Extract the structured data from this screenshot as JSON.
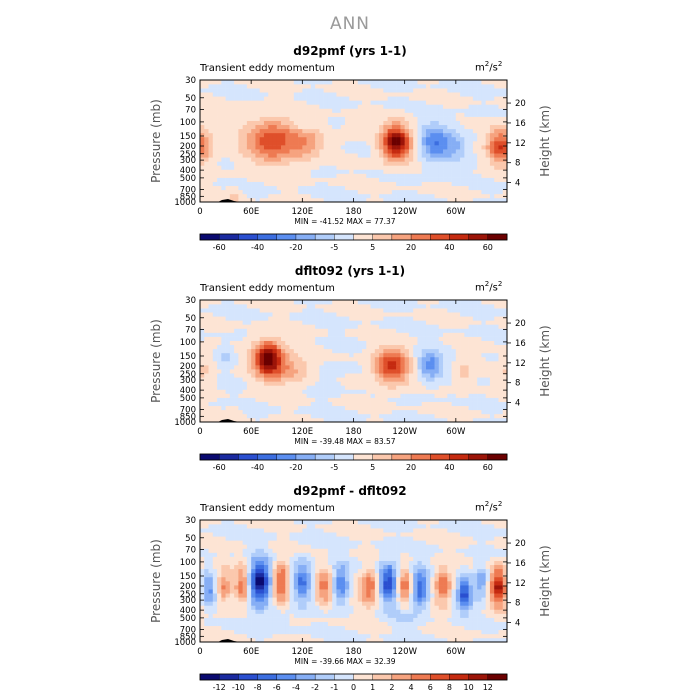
{
  "figure": {
    "title": "ANN"
  },
  "chart_data": [
    {
      "type": "heatmap",
      "title": "d92pmf (yrs 1-1)",
      "subtitle": "Transient eddy momentum",
      "units_base": "m",
      "units_sup1": "2",
      "units_mid": "/s",
      "units_sup2": "2",
      "ylabel": "Pressure (mb)",
      "y2label": "Height (km)",
      "x_ticks": [
        "0",
        "60E",
        "120E",
        "180",
        "120W",
        "60W"
      ],
      "x_tick_lon": [
        0,
        60,
        120,
        180,
        240,
        300
      ],
      "pressure_ticks": [
        "30",
        "50",
        "70",
        "100",
        "150",
        "200",
        "250",
        "300",
        "400",
        "500",
        "700",
        "850",
        "1000"
      ],
      "height_ticks": [
        "20",
        "16",
        "12",
        "8",
        "4"
      ],
      "stats": "MIN = -41.52   MAX =  77.37",
      "colorbar_labels": [
        "-60",
        "-40",
        "-20",
        "-5",
        "5",
        "20",
        "40",
        "60"
      ],
      "colorbar_colors": [
        "#0a0a70",
        "#1a2aa0",
        "#2a4fd0",
        "#3c6ee0",
        "#5b8ef0",
        "#86aef5",
        "#b0cdfa",
        "#d5e5fd",
        "#fde4d4",
        "#fbc8ad",
        "#f6a37f",
        "#ee7a52",
        "#df4f2a",
        "#c52a10",
        "#9c1408",
        "#6b0000"
      ],
      "features": [
        {
          "lon": 2,
          "p": 200,
          "amp": 30,
          "wlon": 10,
          "wp": 0.35
        },
        {
          "lon": 85,
          "p": 170,
          "amp": 50,
          "wlon": 22,
          "wp": 0.42
        },
        {
          "lon": 125,
          "p": 180,
          "amp": 22,
          "wlon": 14,
          "wp": 0.35
        },
        {
          "lon": 230,
          "p": 180,
          "amp": 77,
          "wlon": 12,
          "wp": 0.36
        },
        {
          "lon": 275,
          "p": 180,
          "amp": -41,
          "wlon": 12,
          "wp": 0.36
        },
        {
          "lon": 300,
          "p": 200,
          "amp": -20,
          "wlon": 10,
          "wp": 0.3
        },
        {
          "lon": 348,
          "p": 200,
          "amp": 35,
          "wlon": 9,
          "wp": 0.35
        },
        {
          "lon": 120,
          "p": 110,
          "amp": -12,
          "wlon": 10,
          "wp": 0.15
        },
        {
          "lon": 185,
          "p": 110,
          "amp": 10,
          "wlon": 10,
          "wp": 0.15
        },
        {
          "lon": 40,
          "p": 850,
          "amp": 15,
          "wlon": 5,
          "wp": 0.15
        }
      ]
    },
    {
      "type": "heatmap",
      "title": "dflt092 (yrs 1-1)",
      "subtitle": "Transient eddy momentum",
      "units_base": "m",
      "units_sup1": "2",
      "units_mid": "/s",
      "units_sup2": "2",
      "ylabel": "Pressure (mb)",
      "y2label": "Height (km)",
      "x_ticks": [
        "0",
        "60E",
        "120E",
        "180",
        "120W",
        "60W"
      ],
      "x_tick_lon": [
        0,
        60,
        120,
        180,
        240,
        300
      ],
      "pressure_ticks": [
        "30",
        "50",
        "70",
        "100",
        "150",
        "200",
        "250",
        "300",
        "400",
        "500",
        "700",
        "850",
        "1000"
      ],
      "height_ticks": [
        "20",
        "16",
        "12",
        "8",
        "4"
      ],
      "stats": "MIN = -39.48   MAX =  83.57",
      "colorbar_labels": [
        "-60",
        "-40",
        "-20",
        "-5",
        "5",
        "20",
        "40",
        "60"
      ],
      "colorbar_colors": [
        "#0a0a70",
        "#1a2aa0",
        "#2a4fd0",
        "#3c6ee0",
        "#5b8ef0",
        "#86aef5",
        "#b0cdfa",
        "#d5e5fd",
        "#fde4d4",
        "#fbc8ad",
        "#f6a37f",
        "#ee7a52",
        "#df4f2a",
        "#c52a10",
        "#9c1408",
        "#6b0000"
      ],
      "features": [
        {
          "lon": 80,
          "p": 160,
          "amp": 83,
          "wlon": 12,
          "wp": 0.35
        },
        {
          "lon": 105,
          "p": 220,
          "amp": 25,
          "wlon": 18,
          "wp": 0.3
        },
        {
          "lon": 30,
          "p": 150,
          "amp": -15,
          "wlon": 7,
          "wp": 0.2
        },
        {
          "lon": 5,
          "p": 220,
          "amp": 15,
          "wlon": 8,
          "wp": 0.3
        },
        {
          "lon": 225,
          "p": 200,
          "amp": 60,
          "wlon": 14,
          "wp": 0.35
        },
        {
          "lon": 270,
          "p": 190,
          "amp": -39,
          "wlon": 10,
          "wp": 0.3
        },
        {
          "lon": 310,
          "p": 250,
          "amp": 15,
          "wlon": 7,
          "wp": 0.3
        },
        {
          "lon": 150,
          "p": 250,
          "amp": -5,
          "wlon": 12,
          "wp": 0.3
        },
        {
          "lon": 40,
          "p": 850,
          "amp": 10,
          "wlon": 5,
          "wp": 0.15
        }
      ]
    },
    {
      "type": "heatmap",
      "title": "d92pmf - dflt092",
      "subtitle": "Transient eddy momentum",
      "units_base": "m",
      "units_sup1": "2",
      "units_mid": "/s",
      "units_sup2": "2",
      "ylabel": "Pressure (mb)",
      "y2label": "Height (km)",
      "x_ticks": [
        "0",
        "60E",
        "120E",
        "180",
        "120W",
        "60W"
      ],
      "x_tick_lon": [
        0,
        60,
        120,
        180,
        240,
        300
      ],
      "pressure_ticks": [
        "30",
        "50",
        "70",
        "100",
        "150",
        "200",
        "250",
        "300",
        "400",
        "500",
        "700",
        "850",
        "1000"
      ],
      "height_ticks": [
        "20",
        "16",
        "12",
        "8",
        "4"
      ],
      "stats": "MIN = -39.66   MAX =  32.39",
      "colorbar_labels": [
        "-12",
        "-10",
        "-8",
        "-6",
        "-4",
        "-2",
        "-1",
        "0",
        "1",
        "2",
        "4",
        "6",
        "8",
        "10",
        "12"
      ],
      "colorbar_colors": [
        "#0a0a70",
        "#1a2aa0",
        "#2a4fd0",
        "#3c6ee0",
        "#5b8ef0",
        "#86aef5",
        "#b0cdfa",
        "#d5e5fd",
        "#fde4d4",
        "#fbc8ad",
        "#f6a37f",
        "#ee7a52",
        "#df4f2a",
        "#c52a10",
        "#9c1408",
        "#6b0000"
      ],
      "features": [
        {
          "lon": 10,
          "p": 220,
          "amp": -18,
          "wlon": 6,
          "wp": 0.35
        },
        {
          "lon": 28,
          "p": 200,
          "amp": 16,
          "wlon": 6,
          "wp": 0.35
        },
        {
          "lon": 50,
          "p": 190,
          "amp": 20,
          "wlon": 6,
          "wp": 0.4
        },
        {
          "lon": 70,
          "p": 180,
          "amp": -39,
          "wlon": 9,
          "wp": 0.45
        },
        {
          "lon": 95,
          "p": 180,
          "amp": 25,
          "wlon": 7,
          "wp": 0.4
        },
        {
          "lon": 120,
          "p": 170,
          "amp": -22,
          "wlon": 8,
          "wp": 0.4
        },
        {
          "lon": 145,
          "p": 200,
          "amp": 18,
          "wlon": 7,
          "wp": 0.35
        },
        {
          "lon": 165,
          "p": 190,
          "amp": -20,
          "wlon": 7,
          "wp": 0.4
        },
        {
          "lon": 200,
          "p": 210,
          "amp": 22,
          "wlon": 9,
          "wp": 0.35
        },
        {
          "lon": 220,
          "p": 180,
          "amp": -32,
          "wlon": 8,
          "wp": 0.4
        },
        {
          "lon": 240,
          "p": 200,
          "amp": 20,
          "wlon": 6,
          "wp": 0.35
        },
        {
          "lon": 258,
          "p": 210,
          "amp": -25,
          "wlon": 7,
          "wp": 0.4
        },
        {
          "lon": 285,
          "p": 200,
          "amp": 22,
          "wlon": 7,
          "wp": 0.35
        },
        {
          "lon": 310,
          "p": 250,
          "amp": -28,
          "wlon": 6,
          "wp": 0.35
        },
        {
          "lon": 330,
          "p": 180,
          "amp": -15,
          "wlon": 6,
          "wp": 0.35
        },
        {
          "lon": 350,
          "p": 200,
          "amp": 32,
          "wlon": 7,
          "wp": 0.4
        },
        {
          "lon": 90,
          "p": 500,
          "amp": -6,
          "wlon": 10,
          "wp": 0.2
        },
        {
          "lon": 240,
          "p": 450,
          "amp": -6,
          "wlon": 10,
          "wp": 0.2
        }
      ]
    }
  ]
}
